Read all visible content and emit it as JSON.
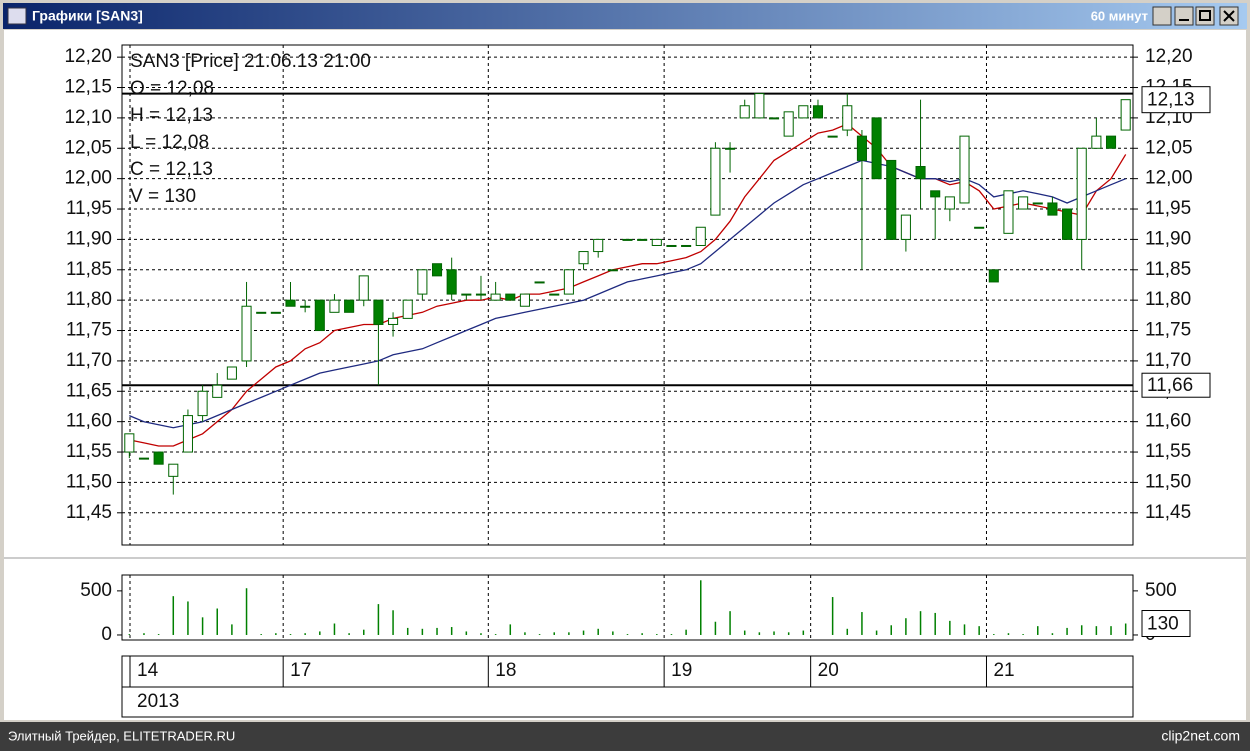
{
  "window": {
    "title": "Графики [SAN3]",
    "interval": "60 минут"
  },
  "footer": {
    "left": "Элитный Трейдер, ELITETRADER.RU",
    "right": "clip2net.com"
  },
  "chart_data": [
    {
      "type": "candlestick",
      "info_lines": [
        "SAN3 [Price] 21.06.13 21:00",
        "O = 12,08",
        "H = 12,13",
        "L = 12,08",
        "C = 12,13",
        "V = 130"
      ],
      "categories": [
        "14",
        null,
        null,
        null,
        null,
        null,
        null,
        null,
        null,
        null,
        null,
        "17",
        null,
        null,
        null,
        null,
        null,
        null,
        null,
        null,
        null,
        null,
        null,
        null,
        null,
        "18",
        null,
        null,
        null,
        null,
        null,
        null,
        null,
        null,
        null,
        null,
        null,
        "19",
        null,
        null,
        null,
        null,
        null,
        null,
        null,
        null,
        null,
        "20",
        null,
        null,
        null,
        null,
        null,
        null,
        null,
        null,
        null,
        null,
        null,
        "21",
        null,
        null,
        null,
        null,
        null,
        null,
        null,
        null,
        null
      ],
      "year": "2013",
      "open": [
        11.55,
        11.54,
        11.55,
        11.51,
        11.55,
        11.61,
        11.64,
        11.67,
        11.7,
        11.78,
        11.78,
        11.8,
        11.79,
        11.8,
        11.78,
        11.8,
        11.8,
        11.8,
        11.76,
        11.77,
        11.81,
        11.86,
        11.85,
        11.81,
        11.81,
        11.8,
        11.81,
        11.79,
        11.83,
        11.81,
        11.81,
        11.86,
        11.88,
        11.85,
        11.9,
        11.9,
        11.89,
        11.89,
        11.89,
        11.89,
        11.94,
        12.05,
        12.1,
        12.1,
        12.1,
        12.07,
        12.1,
        12.12,
        12.07,
        12.08,
        12.07,
        12.1,
        12.03,
        11.9,
        12.02,
        11.98,
        11.95,
        11.96,
        11.92,
        11.85,
        11.91,
        11.95,
        11.96,
        11.96,
        11.95,
        11.9,
        12.05,
        12.07,
        12.08
      ],
      "high": [
        11.58,
        11.54,
        11.55,
        11.53,
        11.62,
        11.66,
        11.68,
        11.69,
        11.83,
        11.78,
        11.78,
        11.83,
        11.8,
        11.8,
        11.81,
        11.8,
        11.84,
        11.8,
        11.78,
        11.8,
        11.85,
        11.86,
        11.87,
        11.81,
        11.84,
        11.83,
        11.81,
        11.81,
        11.83,
        11.81,
        11.85,
        11.88,
        11.9,
        11.85,
        11.9,
        11.9,
        11.9,
        11.89,
        11.89,
        11.92,
        12.06,
        12.06,
        12.13,
        12.14,
        12.1,
        12.11,
        12.12,
        12.13,
        12.07,
        12.14,
        12.08,
        12.1,
        12.03,
        11.94,
        12.13,
        11.98,
        11.97,
        12.07,
        11.92,
        11.85,
        11.98,
        11.97,
        11.96,
        11.97,
        11.95,
        12.05,
        12.1,
        12.07,
        12.13
      ],
      "low": [
        11.54,
        11.54,
        11.53,
        11.48,
        11.55,
        11.6,
        11.64,
        11.67,
        11.69,
        11.78,
        11.78,
        11.79,
        11.78,
        11.75,
        11.78,
        11.78,
        11.79,
        11.66,
        11.74,
        11.77,
        11.8,
        11.84,
        11.8,
        11.8,
        11.8,
        11.8,
        11.8,
        11.79,
        11.83,
        11.81,
        11.81,
        11.85,
        11.87,
        11.85,
        11.9,
        11.9,
        11.89,
        11.89,
        11.89,
        11.89,
        11.94,
        12.01,
        12.1,
        12.1,
        12.1,
        12.07,
        12.1,
        12.1,
        12.07,
        12.07,
        11.85,
        12.0,
        11.9,
        11.88,
        11.95,
        11.9,
        11.93,
        11.96,
        11.92,
        11.83,
        11.91,
        11.95,
        11.96,
        11.94,
        11.9,
        11.85,
        12.05,
        12.05,
        12.08
      ],
      "close": [
        11.58,
        11.54,
        11.53,
        11.53,
        11.61,
        11.65,
        11.66,
        11.69,
        11.79,
        11.78,
        11.78,
        11.79,
        11.79,
        11.75,
        11.8,
        11.78,
        11.84,
        11.76,
        11.77,
        11.8,
        11.85,
        11.84,
        11.81,
        11.81,
        11.81,
        11.81,
        11.8,
        11.81,
        11.83,
        11.81,
        11.85,
        11.88,
        11.9,
        11.85,
        11.9,
        11.9,
        11.9,
        11.89,
        11.89,
        11.92,
        12.05,
        12.05,
        12.12,
        12.14,
        12.1,
        12.11,
        12.12,
        12.1,
        12.07,
        12.12,
        12.03,
        12.0,
        11.9,
        11.94,
        12.0,
        11.97,
        11.97,
        12.07,
        11.92,
        11.83,
        11.98,
        11.97,
        11.96,
        11.94,
        11.9,
        12.05,
        12.07,
        12.05,
        12.13
      ],
      "up_color": "#ffffff",
      "down_color": "#008000",
      "candle_outline": "#006400",
      "series": [
        {
          "color": "#c00000",
          "values": [
            11.57,
            11.565,
            11.56,
            11.56,
            11.57,
            11.58,
            11.6,
            11.62,
            11.65,
            11.67,
            11.69,
            11.7,
            11.72,
            11.73,
            11.75,
            11.755,
            11.76,
            11.76,
            11.77,
            11.775,
            11.78,
            11.79,
            11.795,
            11.8,
            11.8,
            11.805,
            11.8,
            11.81,
            11.81,
            11.815,
            11.82,
            11.83,
            11.84,
            11.85,
            11.855,
            11.86,
            11.86,
            11.865,
            11.87,
            11.88,
            11.9,
            11.93,
            11.97,
            12.0,
            12.03,
            12.045,
            12.06,
            12.075,
            12.08,
            12.09,
            12.07,
            12.05,
            12.02,
            12.01,
            12.0,
            12.0,
            11.99,
            11.995,
            11.98,
            11.95,
            11.955,
            11.96,
            11.955,
            11.95,
            11.945,
            11.94,
            11.98,
            12.0,
            12.04
          ]
        },
        {
          "color": "#1f2a80",
          "values": [
            11.61,
            11.6,
            11.595,
            11.59,
            11.595,
            11.6,
            11.61,
            11.62,
            11.63,
            11.64,
            11.65,
            11.66,
            11.67,
            11.68,
            11.685,
            11.69,
            11.695,
            11.7,
            11.71,
            11.715,
            11.72,
            11.73,
            11.74,
            11.75,
            11.76,
            11.77,
            11.775,
            11.78,
            11.785,
            11.79,
            11.795,
            11.8,
            11.81,
            11.82,
            11.83,
            11.835,
            11.84,
            11.845,
            11.85,
            11.86,
            11.88,
            11.9,
            11.92,
            11.94,
            11.96,
            11.975,
            11.99,
            12.0,
            12.01,
            12.02,
            12.03,
            12.025,
            12.02,
            12.01,
            12.0,
            12.0,
            11.995,
            12.0,
            11.99,
            11.97,
            11.975,
            11.98,
            11.975,
            11.97,
            11.96,
            11.97,
            11.98,
            11.99,
            12.0
          ]
        }
      ],
      "level_lines": [
        {
          "value": 12.14
        },
        {
          "value": 11.66,
          "label": "11,66"
        }
      ],
      "last_price": {
        "value": 12.13,
        "label": "12,13"
      },
      "ylim": [
        11.397,
        12.22
      ],
      "yticks": [
        {
          "value": 12.2,
          "label": "12,20"
        },
        {
          "value": 12.15,
          "label": "12,15"
        },
        {
          "value": 12.1,
          "label": "12,10"
        },
        {
          "value": 12.05,
          "label": "12,05"
        },
        {
          "value": 12.0,
          "label": "12,00"
        },
        {
          "value": 11.95,
          "label": "11,95"
        },
        {
          "value": 11.9,
          "label": "11,90"
        },
        {
          "value": 11.85,
          "label": "11,85"
        },
        {
          "value": 11.8,
          "label": "11,80"
        },
        {
          "value": 11.75,
          "label": "11,75"
        },
        {
          "value": 11.7,
          "label": "11,70"
        },
        {
          "value": 11.65,
          "label": "11,65"
        },
        {
          "value": 11.6,
          "label": "11,60"
        },
        {
          "value": 11.55,
          "label": "11,55"
        },
        {
          "value": 11.5,
          "label": "11,50"
        },
        {
          "value": 11.45,
          "label": "11,45"
        }
      ],
      "grid": true
    },
    {
      "type": "bar",
      "color": "#008000",
      "values": [
        10,
        20,
        10,
        440,
        380,
        200,
        300,
        120,
        530,
        10,
        20,
        10,
        20,
        40,
        130,
        20,
        60,
        350,
        280,
        80,
        70,
        80,
        90,
        40,
        20,
        10,
        120,
        30,
        10,
        30,
        30,
        50,
        70,
        40,
        10,
        20,
        10,
        10,
        60,
        620,
        150,
        270,
        50,
        30,
        40,
        30,
        50,
        0,
        430,
        70,
        260,
        50,
        110,
        190,
        270,
        250,
        160,
        120,
        100,
        10,
        20,
        10,
        100,
        20,
        80,
        110,
        100,
        100,
        130
      ],
      "last_value": 130,
      "ylim": [
        -57,
        680
      ],
      "yticks": [
        0,
        500
      ]
    }
  ]
}
